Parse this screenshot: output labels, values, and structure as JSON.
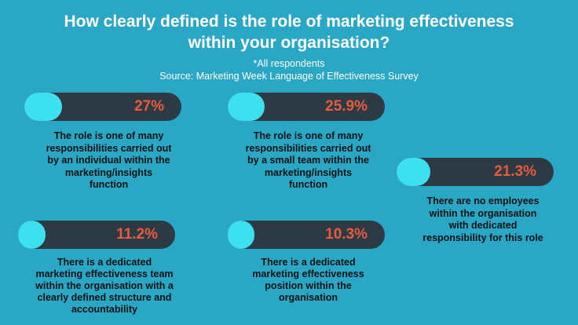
{
  "header": {
    "title_line1": "How clearly defined is the role of marketing effectiveness",
    "title_line2": "within your organisation?",
    "note": "*All respondents",
    "source": "Source: Marketing Week Language of Effectiveness Survey"
  },
  "colors": {
    "background": "#2ba7c6",
    "pill_track": "#2d3a44",
    "pill_fill": "#3de0ee",
    "percent_text": "#e85b3f"
  },
  "chart_data": {
    "type": "bar",
    "title": "How clearly defined is the role of marketing effectiveness within your organisation?",
    "unit": "%",
    "items": [
      {
        "value": 27,
        "label": "27%",
        "desc": [
          "The role is one of many",
          "responsibilities carried out",
          "by an individual within the",
          "marketing/insights",
          "function"
        ]
      },
      {
        "value": 25.9,
        "label": "25.9%",
        "desc": [
          "The role is one of many",
          "responsibilities carried out",
          "by a small team within the",
          "marketing/insights",
          "function"
        ]
      },
      {
        "value": 21.3,
        "label": "21.3%",
        "desc": [
          "There are no employees",
          "within the organisation",
          "with dedicated",
          "responsibility for this role"
        ]
      },
      {
        "value": 11.2,
        "label": "11.2%",
        "desc": [
          "There is a dedicated",
          "marketing effectiveness team",
          "within the organisation with a",
          "clearly defined structure and",
          "accountability"
        ]
      },
      {
        "value": 10.3,
        "label": "10.3%",
        "desc": [
          "There is a dedicated",
          "marketing effectiveness",
          "position within the",
          "organisation"
        ]
      }
    ]
  }
}
